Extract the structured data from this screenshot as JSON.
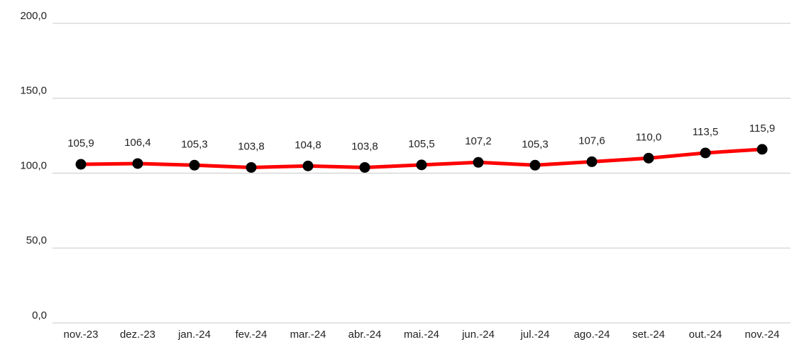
{
  "chart_data": {
    "type": "line",
    "categories": [
      "nov.-23",
      "dez.-23",
      "jan.-24",
      "fev.-24",
      "mar.-24",
      "abr.-24",
      "mai.-24",
      "jun.-24",
      "jul.-24",
      "ago.-24",
      "set.-24",
      "out.-24",
      "nov.-24"
    ],
    "series": [
      {
        "color": "#ff0000",
        "marker_color": "#000000",
        "values": [
          105.9,
          106.4,
          105.3,
          103.8,
          104.8,
          103.8,
          105.5,
          107.2,
          105.3,
          107.6,
          110.0,
          113.5,
          115.9
        ],
        "value_labels": [
          "105,9",
          "106,4",
          "105,3",
          "103,8",
          "104,8",
          "103,8",
          "105,5",
          "107,2",
          "105,3",
          "107,6",
          "110,0",
          "113,5",
          "115,9"
        ]
      }
    ],
    "ylim": [
      0,
      200
    ],
    "yticks": [
      {
        "value": 0,
        "label": "0,0"
      },
      {
        "value": 50,
        "label": "50,0"
      },
      {
        "value": 100,
        "label": "100,0"
      },
      {
        "value": 150,
        "label": "150,0"
      },
      {
        "value": 200,
        "label": "200,0"
      }
    ],
    "grid": true
  }
}
